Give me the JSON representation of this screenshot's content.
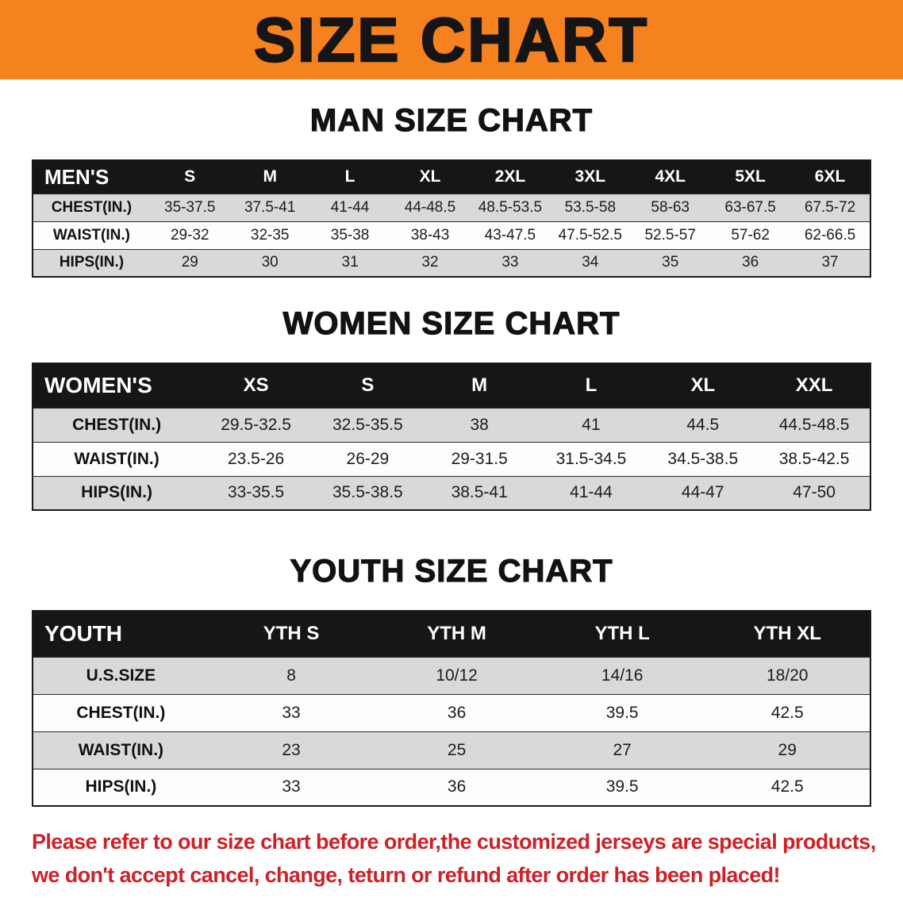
{
  "banner": {
    "title": "SIZE CHART",
    "background": "#f5821f"
  },
  "sections": [
    {
      "id": "men",
      "heading": "MAN SIZE CHART",
      "table": {
        "header": [
          "MEN'S",
          "S",
          "M",
          "L",
          "XL",
          "2XL",
          "3XL",
          "4XL",
          "5XL",
          "6XL"
        ],
        "rows": [
          {
            "label": "CHEST(IN.)",
            "values": [
              "35-37.5",
              "37.5-41",
              "41-44",
              "44-48.5",
              "48.5-53.5",
              "53.5-58",
              "58-63",
              "63-67.5",
              "67.5-72"
            ]
          },
          {
            "label": "WAIST(IN.)",
            "values": [
              "29-32",
              "32-35",
              "35-38",
              "38-43",
              "43-47.5",
              "47.5-52.5",
              "52.5-57",
              "57-62",
              "62-66.5"
            ]
          },
          {
            "label": "HIPS(IN.)",
            "values": [
              "29",
              "30",
              "31",
              "32",
              "33",
              "34",
              "35",
              "36",
              "37"
            ]
          }
        ]
      }
    },
    {
      "id": "women",
      "heading": "WOMEN SIZE CHART",
      "table": {
        "header": [
          "WOMEN'S",
          "XS",
          "S",
          "M",
          "L",
          "XL",
          "XXL"
        ],
        "rows": [
          {
            "label": "CHEST(IN.)",
            "values": [
              "29.5-32.5",
              "32.5-35.5",
              "38",
              "41",
              "44.5",
              "44.5-48.5"
            ]
          },
          {
            "label": "WAIST(IN.)",
            "values": [
              "23.5-26",
              "26-29",
              "29-31.5",
              "31.5-34.5",
              "34.5-38.5",
              "38.5-42.5"
            ]
          },
          {
            "label": "HIPS(IN.)",
            "values": [
              "33-35.5",
              "35.5-38.5",
              "38.5-41",
              "41-44",
              "44-47",
              "47-50"
            ]
          }
        ]
      }
    },
    {
      "id": "youth",
      "heading": "YOUTH SIZE CHART",
      "table": {
        "header": [
          "YOUTH",
          "YTH S",
          "YTH M",
          "YTH L",
          "YTH XL"
        ],
        "rows": [
          {
            "label": "U.S.SIZE",
            "values": [
              "8",
              "10/12",
              "14/16",
              "18/20"
            ]
          },
          {
            "label": "CHEST(IN.)",
            "values": [
              "33",
              "36",
              "39.5",
              "42.5"
            ]
          },
          {
            "label": "WAIST(IN.)",
            "values": [
              "23",
              "25",
              "27",
              "29"
            ]
          },
          {
            "label": "HIPS(IN.)",
            "values": [
              "33",
              "36",
              "39.5",
              "42.5"
            ]
          }
        ]
      }
    }
  ],
  "footer": {
    "text_color": "#ce2127",
    "lines": [
      "Please refer to our size chart before order,the customized jerseys are special products,",
      "we don't accept cancel, change, teturn or refund after order has been placed!"
    ]
  }
}
